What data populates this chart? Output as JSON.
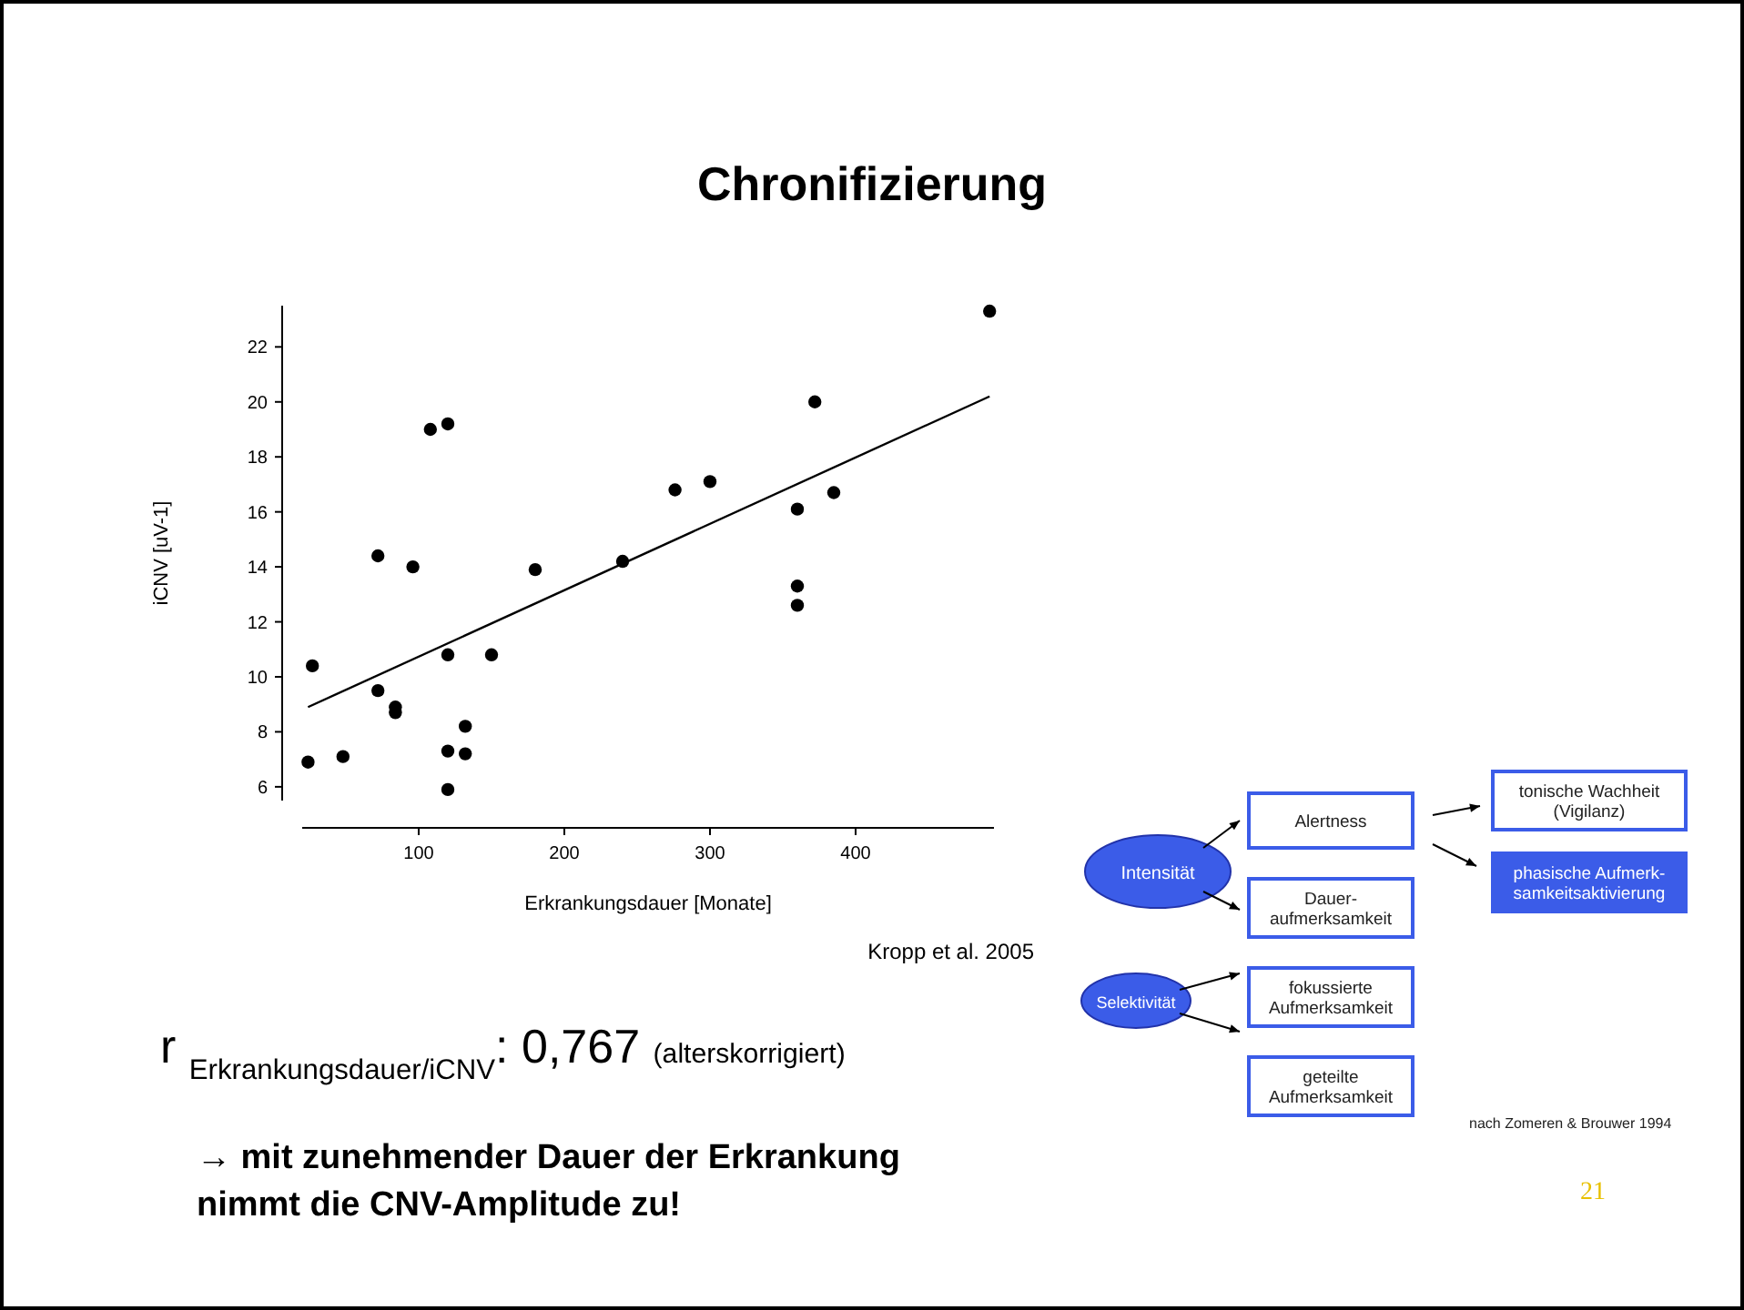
{
  "chart_data": [
    {
      "type": "scatter",
      "title": "Chronifizierung",
      "xlabel": "Erkrankungsdauer [Monate]",
      "ylabel": "iCNV [uV-1]",
      "xlim": [
        20,
        495
      ],
      "ylim": [
        5.5,
        23.5
      ],
      "xticks": [
        100,
        200,
        300,
        400
      ],
      "yticks": [
        6,
        8,
        10,
        12,
        14,
        16,
        18,
        20,
        22
      ],
      "grid": false,
      "series": [
        {
          "type": "scatter",
          "color": "#000000",
          "marker": "circle",
          "x": [
            24,
            27,
            48,
            72,
            72,
            84,
            84,
            96,
            108,
            120,
            120,
            120,
            120,
            132,
            132,
            150,
            180,
            240,
            276,
            300,
            360,
            360,
            360,
            372,
            385,
            492
          ],
          "values": [
            6.9,
            10.4,
            7.1,
            14.4,
            9.5,
            8.9,
            8.7,
            14.0,
            19.0,
            19.2,
            10.8,
            7.3,
            5.9,
            8.2,
            7.2,
            10.8,
            13.9,
            14.2,
            16.8,
            17.1,
            16.1,
            13.3,
            12.6,
            20.0,
            16.7,
            23.3
          ]
        },
        {
          "type": "line",
          "color": "#000000",
          "marker": "none",
          "line_style": "solid",
          "x": [
            24,
            492
          ],
          "values": [
            8.9,
            20.2
          ]
        }
      ],
      "annotations": [
        "Kropp et al. 2005",
        "r $_{Erkrankungsdauer/iCNV}$: 0,767 (alterskorrigiert)",
        "→ mit zunehmender Dauer der Erkrankung\nnimmt die CNV-Amplitude zu!",
        "21"
      ]
    },
    {
      "type": "other",
      "annotations": [
        "Intensität",
        "Selektivität",
        "Alertness",
        "Dauer-\naufmerksamkeit",
        "fokussierte\nAufmerksamkeit",
        "geteilte\nAufmerksamkeit",
        "tonische Wachheit\n(Vigilanz)",
        "phasische Aufmerk-\nsamkeitsaktivierung",
        "nach Zomeren & Brouwer 1994"
      ]
    }
  ]
}
